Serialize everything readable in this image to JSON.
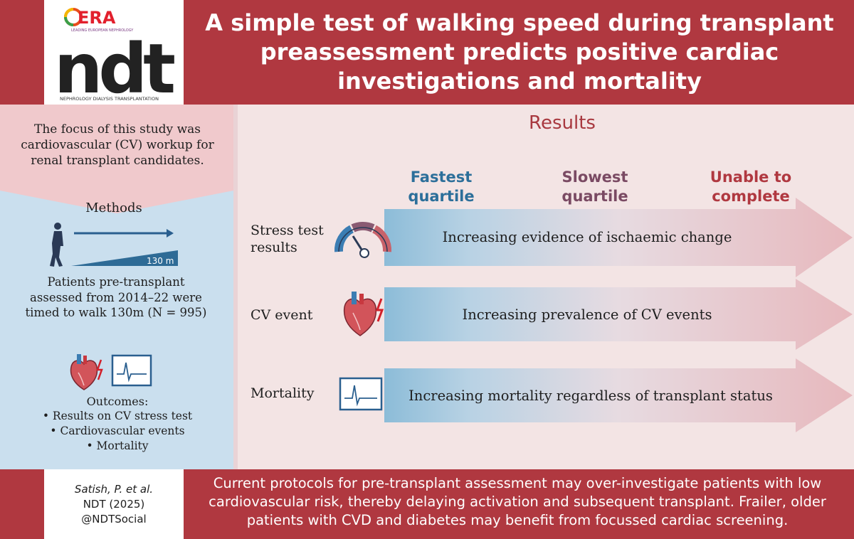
{
  "colors": {
    "brand_red": "#b03840",
    "light_blue": "#cadfee",
    "light_pink": "#f0c9cc",
    "fastest": "#2c6f9a",
    "slowest": "#7a4a63",
    "unable": "#b03840"
  },
  "logo": {
    "era": "ERA",
    "era_sub": "LEADING EUROPEAN NEPHROLOGY",
    "ndt": "ndt",
    "ndt_sub": "NEPHROLOGY DIALYSIS TRANSPLANTATION"
  },
  "header": {
    "title": "A simple test of walking speed during transplant preassessment predicts positive cardiac investigations and mortality"
  },
  "left": {
    "focus": "The focus of this study was cardiovascular (CV) workup for renal transplant candidates.",
    "methods_heading": "Methods",
    "distance_label": "130 m",
    "patients": "Patients pre-transplant assessed from 2014–22 were timed to walk 130m (N = 995)",
    "outcomes_heading": "Outcomes:",
    "outcomes": [
      "• Results on CV stress test",
      "• Cardiovascular events",
      "• Mortality"
    ],
    "icons": [
      "walking-person-icon",
      "heart-icon",
      "ecg-monitor-icon"
    ]
  },
  "results": {
    "heading": "Results",
    "columns": [
      {
        "line1": "Fastest",
        "line2": "quartile"
      },
      {
        "line1": "Slowest",
        "line2": "quartile"
      },
      {
        "line1": "Unable to",
        "line2": "complete"
      }
    ],
    "rows": [
      {
        "label1": "Stress test",
        "label2": "results",
        "text": "Increasing evidence of ischaemic change",
        "icon": "gauge-icon"
      },
      {
        "label1": "CV event",
        "label2": "",
        "text": "Increasing prevalence of CV events",
        "icon": "heart-icon"
      },
      {
        "label1": "Mortality",
        "label2": "",
        "text": "Increasing mortality regardless of transplant status",
        "icon": "ecg-monitor-icon"
      }
    ]
  },
  "footer": {
    "citation": [
      "Satish, P. et al.",
      "NDT (2025)",
      "@NDTSocial"
    ],
    "conclusion": "Current protocols for pre-transplant assessment may over-investigate patients with low cardiovascular risk, thereby delaying activation and subsequent transplant. Frailer, older patients with CVD and diabetes may benefit from focussed cardiac screening."
  }
}
